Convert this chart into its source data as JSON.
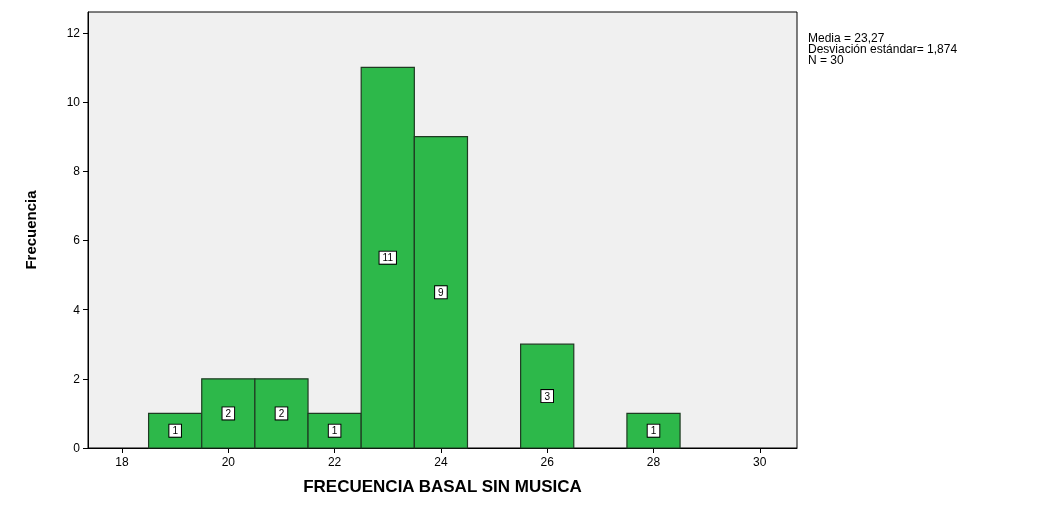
{
  "chart_data": {
    "type": "histogram",
    "xlabel": "FRECUENCIA BASAL SIN MUSICA",
    "ylabel": "Frecuencia",
    "bins": [
      18.5,
      19.5,
      20.5,
      21.5,
      22.5,
      23.5,
      24.5,
      25.5,
      26.5,
      27.5,
      28.5
    ],
    "values": [
      1,
      2,
      2,
      1,
      11,
      9,
      0,
      3,
      0,
      1
    ],
    "value_labels": [
      "1",
      "2",
      "2",
      "1",
      "11",
      "9",
      null,
      "3",
      null,
      "1"
    ],
    "color": "#2db84a",
    "xlim": [
      17.36,
      30.7
    ],
    "xticks": [
      18,
      20,
      22,
      24,
      26,
      28,
      30
    ],
    "ylim": [
      0,
      12.6
    ],
    "yticks": [
      0,
      2,
      4,
      6,
      8,
      10,
      12
    ],
    "grid": false,
    "annotations": [
      "Media = 23,27",
      "Desviación estándar= 1,874",
      "N = 30"
    ]
  }
}
